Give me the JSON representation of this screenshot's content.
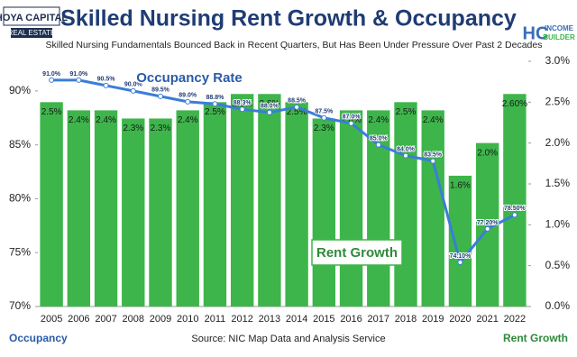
{
  "logos": {
    "left_top": "HOYA CAPITAL",
    "left_bottom": "REAL ESTATE",
    "right_mark": "HC",
    "right_top": "INCOME",
    "right_bottom": "BUILDER"
  },
  "chart_data": {
    "type": "bar",
    "title": "Skilled Nursing Rent Growth & Occupancy",
    "subtitle": "Skilled Nursing Fundamentals Bounced Back in Recent Quarters, But Has Been Under Pressure Over Past 2 Decades",
    "y_label": "Occupancy",
    "y2_label": "Rent Growth",
    "source": "Source: NIC Map Data and Analysis Service",
    "annotations": [
      "Occupancy Rate",
      "Rent Growth"
    ],
    "categories": [
      "2005",
      "2006",
      "2007",
      "2008",
      "2009",
      "2010",
      "2011",
      "2012",
      "2013",
      "2014",
      "2015",
      "2016",
      "2017",
      "2018",
      "2019",
      "2020",
      "2021",
      "2022"
    ],
    "series": [
      {
        "name": "Rent Growth",
        "type": "bar",
        "axis": "y2",
        "color": "#3db54a",
        "values": [
          2.5,
          2.4,
          2.4,
          2.3,
          2.3,
          2.4,
          2.5,
          2.6,
          2.6,
          2.5,
          2.3,
          2.4,
          2.4,
          2.5,
          2.4,
          1.6,
          2.0,
          2.6
        ],
        "value_labels": [
          "2.5%",
          "2.4%",
          "2.4%",
          "2.3%",
          "2.3%",
          "2.4%",
          "2.5%",
          "2.6%",
          "2.6%",
          "2.5%",
          "2.3%",
          "2.4%",
          "2.4%",
          "2.5%",
          "2.4%",
          "1.6%",
          "2.0%",
          "2.60%"
        ]
      },
      {
        "name": "Occupancy Rate",
        "type": "line",
        "axis": "y",
        "color": "#3b7dd8",
        "values": [
          91.0,
          91.0,
          90.5,
          90.0,
          89.5,
          89.0,
          88.8,
          88.3,
          88.0,
          88.5,
          87.5,
          87.0,
          85.0,
          84.0,
          83.5,
          74.1,
          77.2,
          78.5
        ],
        "value_labels": [
          "91.0%",
          "91.0%",
          "90.5%",
          "90.0%",
          "89.5%",
          "89.0%",
          "88.8%",
          "88.3%",
          "88.0%",
          "88.5%",
          "87.5%",
          "87.0%",
          "85.0%",
          "84.0%",
          "83.5%",
          "74.10%",
          "77.20%",
          "78.50%"
        ]
      }
    ],
    "ylim": [
      70,
      92.75
    ],
    "yticks": [
      {
        "value": 70,
        "label": "70%"
      },
      {
        "value": 75,
        "label": "75%"
      },
      {
        "value": 80,
        "label": "80%"
      },
      {
        "value": 85,
        "label": "85%"
      },
      {
        "value": 90,
        "label": "90%"
      }
    ],
    "y2lim": [
      0,
      3.0
    ],
    "y2ticks": [
      {
        "value": 0,
        "label": "0.0%"
      },
      {
        "value": 0.5,
        "label": "0.5%"
      },
      {
        "value": 1.0,
        "label": "1.0%"
      },
      {
        "value": 1.5,
        "label": "1.5%"
      },
      {
        "value": 2.0,
        "label": "2.0%"
      },
      {
        "value": 2.5,
        "label": "2.5%"
      },
      {
        "value": 3.0,
        "label": "3.0%"
      }
    ]
  }
}
